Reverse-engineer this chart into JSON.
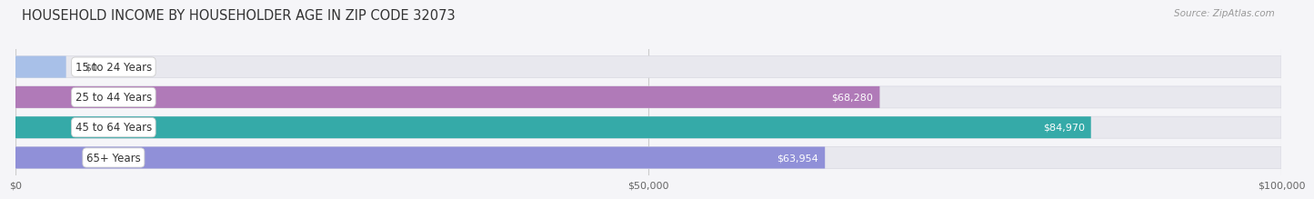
{
  "title": "HOUSEHOLD INCOME BY HOUSEHOLDER AGE IN ZIP CODE 32073",
  "source": "Source: ZipAtlas.com",
  "categories": [
    "15 to 24 Years",
    "25 to 44 Years",
    "45 to 64 Years",
    "65+ Years"
  ],
  "values": [
    0,
    68280,
    84970,
    63954
  ],
  "bar_colors": [
    "#a8c0e8",
    "#b07ab8",
    "#35aaa8",
    "#9090d8"
  ],
  "bar_bg_color": "#e8e8ee",
  "bar_bg_edgecolor": "#d8d8e0",
  "value_labels": [
    "$0",
    "$68,280",
    "$84,970",
    "$63,954"
  ],
  "xmax": 100000,
  "xticks": [
    0,
    50000,
    100000
  ],
  "xtick_labels": [
    "$0",
    "$50,000",
    "$100,000"
  ],
  "title_fontsize": 10.5,
  "source_fontsize": 7.5,
  "label_fontsize": 8.5,
  "value_fontsize": 8,
  "background_color": "#f5f5f8",
  "bar_height": 0.72,
  "grid_color": "#cccccc"
}
